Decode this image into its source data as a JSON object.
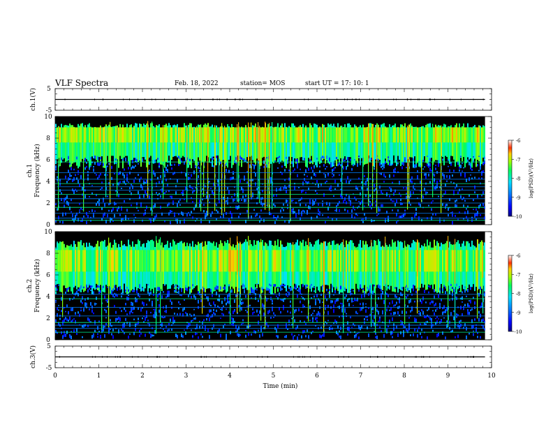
{
  "header": {
    "title": "VLF Spectra",
    "date": "Feb. 18, 2022",
    "station": "station= MOS",
    "start": "start UT = 17: 10: 1"
  },
  "colors": {
    "spectrogram_colormap": [
      "#000000",
      "#0000cc",
      "#0055ff",
      "#00c0ff",
      "#00ff80",
      "#80ff00",
      "#ffff00",
      "#ff8800",
      "#ff0000",
      "#ffffff"
    ]
  },
  "chart_data": [
    {
      "id": "ch1-waveform",
      "type": "line",
      "ylabel": "ch.1(V)",
      "ylim": [
        -5,
        5
      ],
      "yticks": [
        "5",
        "-5"
      ],
      "level": 0,
      "xlim": [
        0,
        10
      ]
    },
    {
      "id": "ch1-spectrogram",
      "type": "heatmap",
      "ylabel": "ch.1\nFrequency (kHz)",
      "ylim": [
        0,
        10
      ],
      "yticks": [
        "0",
        "2",
        "4",
        "6",
        "8",
        "10"
      ],
      "xlim": [
        0,
        10
      ],
      "data_xmax": 9.85,
      "colorbar": {
        "label": "log(PSD)(V²/Hz)",
        "range": [
          -10,
          -6
        ],
        "ticks": [
          "-6",
          "-7",
          "-8",
          "-9",
          "-10"
        ]
      }
    },
    {
      "id": "ch2-spectrogram",
      "type": "heatmap",
      "ylabel": "ch.2\nFrequency (kHz)",
      "ylim": [
        0,
        10
      ],
      "yticks": [
        "0",
        "2",
        "4",
        "6",
        "8",
        "10"
      ],
      "xlim": [
        0,
        10
      ],
      "data_xmax": 9.85,
      "colorbar": {
        "label": "log(PSD)(V²/Hz)",
        "range": [
          -10,
          -6
        ],
        "ticks": [
          "-6",
          "-7",
          "-8",
          "-9",
          "-10"
        ]
      }
    },
    {
      "id": "ch3-waveform",
      "type": "line",
      "ylabel": "ch.3(V)",
      "ylim": [
        -5,
        5
      ],
      "yticks": [
        "5",
        "-5"
      ],
      "level": 0,
      "xlim": [
        0,
        10
      ]
    },
    {
      "id": "time-axis",
      "xlabel": "Time (min)",
      "xticks": [
        "0",
        "1",
        "2",
        "3",
        "4",
        "5",
        "6",
        "7",
        "8",
        "9",
        "10"
      ]
    }
  ]
}
